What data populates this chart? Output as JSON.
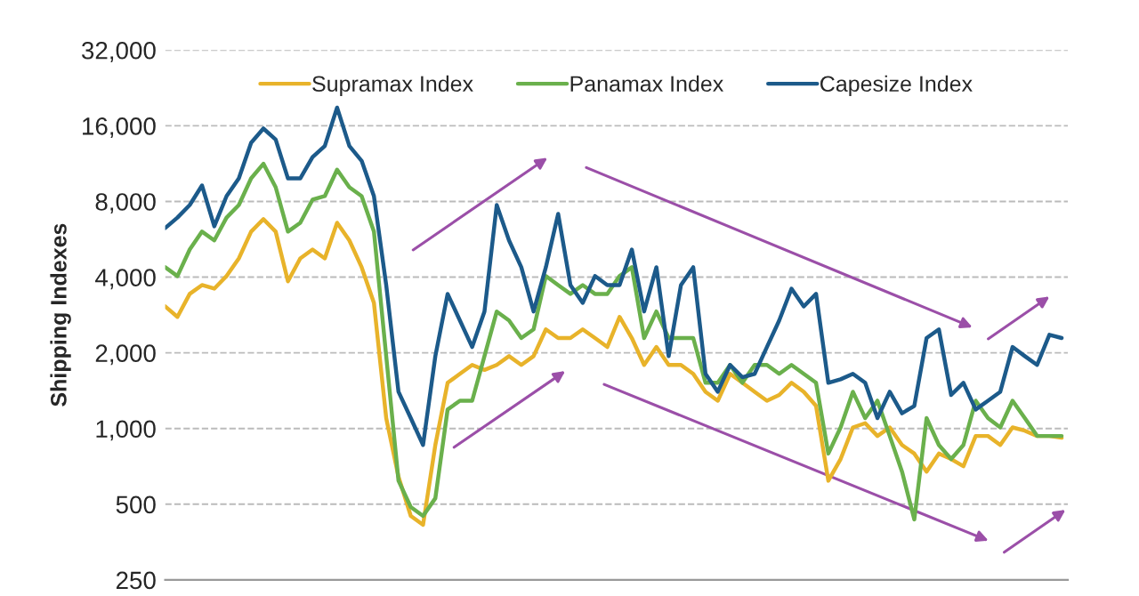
{
  "chart_data": {
    "type": "line",
    "ylabel": "Shipping Indexes",
    "categories": [
      null,
      null,
      null,
      null,
      null,
      null,
      null,
      null,
      null,
      null,
      null,
      null,
      null,
      null,
      null,
      null,
      null,
      null,
      null,
      null,
      null,
      null,
      null,
      null,
      null,
      null,
      null,
      null,
      null,
      null,
      null,
      null,
      null,
      null,
      null,
      null,
      null,
      null,
      null,
      null,
      null,
      null,
      null,
      null,
      null,
      null,
      null,
      null,
      null,
      null,
      null,
      null,
      null,
      null,
      null,
      null,
      null,
      null,
      null,
      null,
      null,
      null,
      null,
      null,
      null,
      null,
      null,
      null,
      null,
      null,
      null,
      null,
      null,
      null
    ],
    "series": [
      {
        "name": "Supramax Index",
        "color": "#e8b32a",
        "values": [
          3060,
          2780,
          3430,
          3720,
          3600,
          4040,
          4750,
          6070,
          6800,
          6070,
          3850,
          4750,
          5150,
          4750,
          6580,
          5600,
          4380,
          3160,
          1100,
          643,
          449,
          414,
          860,
          1520,
          1650,
          1790,
          1710,
          1790,
          1940,
          1790,
          1940,
          2480,
          2290,
          2290,
          2480,
          2290,
          2110,
          2780,
          2290,
          1790,
          2110,
          1790,
          1790,
          1650,
          1400,
          1290,
          1650,
          1520,
          1400,
          1290,
          1360,
          1520,
          1400,
          1230,
          620,
          756,
          1010,
          1050,
          934,
          1010,
          860,
          795,
          674,
          795,
          756,
          708,
          934,
          934,
          860,
          1010,
          980,
          934,
          934,
          919
        ]
      },
      {
        "name": "Panamax Index",
        "color": "#6ab04c",
        "values": [
          4380,
          4040,
          5150,
          6070,
          5600,
          6900,
          7740,
          9880,
          11300,
          9110,
          6070,
          6580,
          8130,
          8400,
          10700,
          9110,
          8400,
          6070,
          1940,
          620,
          487,
          449,
          528,
          1190,
          1290,
          1290,
          1940,
          2920,
          2690,
          2290,
          2480,
          4040,
          3720,
          3430,
          3720,
          3430,
          3430,
          4040,
          4380,
          2290,
          2920,
          2290,
          2290,
          2290,
          1520,
          1520,
          1790,
          1520,
          1790,
          1790,
          1650,
          1790,
          1650,
          1520,
          795,
          1010,
          1400,
          1100,
          1290,
          934,
          674,
          435,
          1100,
          860,
          756,
          860,
          1290,
          1100,
          1010,
          1290,
          1100,
          934,
          934,
          934
        ]
      },
      {
        "name": "Capesize Index",
        "color": "#1c5a8a",
        "values": [
          6270,
          6900,
          7740,
          9260,
          6370,
          8400,
          9880,
          13700,
          15600,
          14100,
          9880,
          9880,
          12000,
          13300,
          18900,
          13300,
          11600,
          8400,
          3720,
          1400,
          1100,
          860,
          1940,
          3430,
          2690,
          2110,
          2920,
          7740,
          5600,
          4380,
          2920,
          4380,
          7140,
          3720,
          3160,
          4040,
          3720,
          3720,
          5150,
          2920,
          4380,
          1940,
          3720,
          4380,
          1650,
          1400,
          1790,
          1600,
          1650,
          2110,
          2690,
          3600,
          3060,
          3430,
          1520,
          1570,
          1650,
          1520,
          1100,
          1400,
          1150,
          1230,
          2290,
          2480,
          1360,
          1520,
          1190,
          1290,
          1400,
          2110,
          1940,
          1790,
          2360,
          2290
        ]
      }
    ],
    "log": true,
    "ylim": [
      250,
      32000
    ],
    "yticks": [
      {
        "value": 250,
        "label": "250"
      },
      {
        "value": 500,
        "label": "500"
      },
      {
        "value": 1000,
        "label": "1,000"
      },
      {
        "value": 2000,
        "label": "2,000"
      },
      {
        "value": 4000,
        "label": "4,000"
      },
      {
        "value": 8000,
        "label": "8,000"
      },
      {
        "value": 16000,
        "label": "16,000"
      },
      {
        "value": 32000,
        "label": "32,000"
      }
    ],
    "grid": "y",
    "legend": "top",
    "tick_labels": "y",
    "line_style": "solid"
  }
}
